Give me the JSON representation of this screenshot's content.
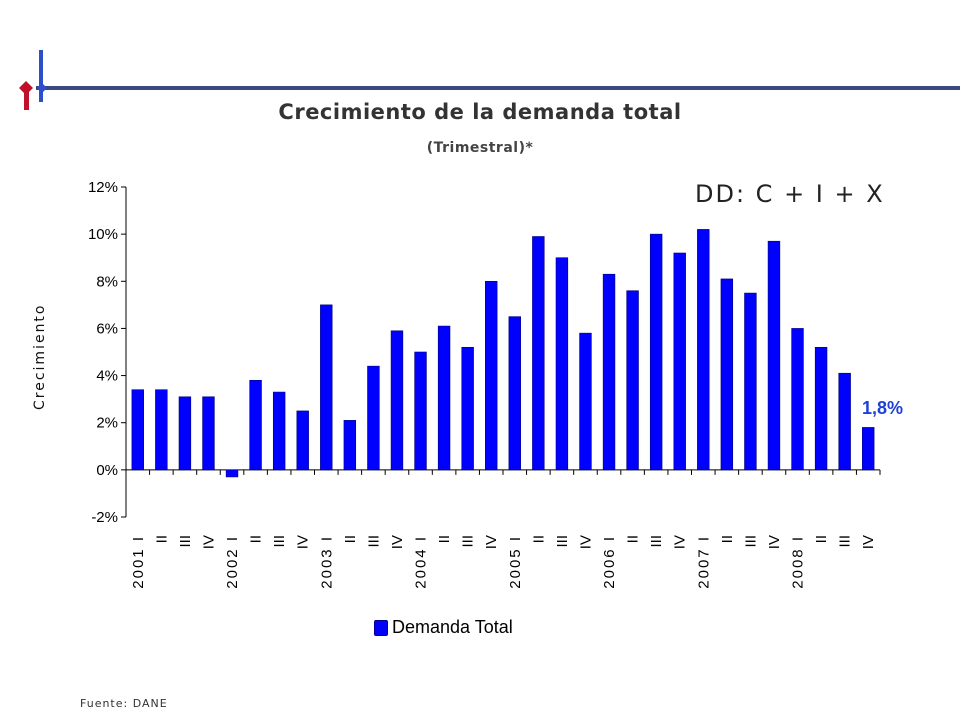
{
  "header": {
    "title": "Crecimiento de la demanda total",
    "subtitle": "(Trimestral)*"
  },
  "annotation": "DD: C + I + X",
  "callout": "1,8%",
  "source": "Fuente: DANE",
  "colors": {
    "bar": "#0000ff",
    "bar_edge": "#000080",
    "rule": "#3b4a7e",
    "logo_red": "#c0102a",
    "logo_blue": "#2a4fc9"
  },
  "chart_data": {
    "type": "bar",
    "ylabel": "Crecimiento",
    "ylim": [
      -2,
      12
    ],
    "yticks": [
      "-2%",
      "0%",
      "2%",
      "4%",
      "6%",
      "8%",
      "10%",
      "12%"
    ],
    "categories": [
      "2001 I",
      "II",
      "III",
      "IV",
      "2002 I",
      "II",
      "III",
      "IV",
      "2003 I",
      "II",
      "III",
      "IV",
      "2004 I",
      "II",
      "III",
      "IV",
      "2005 I",
      "II",
      "III",
      "IV",
      "2006 I",
      "II",
      "III",
      "IV",
      "2007 I",
      "II",
      "III",
      "IV",
      "2008 I",
      "II",
      "III",
      "IV"
    ],
    "series": [
      {
        "name": "Demanda Total",
        "values": [
          3.4,
          3.4,
          3.1,
          3.1,
          -0.3,
          3.8,
          3.3,
          2.5,
          7.0,
          2.1,
          4.4,
          5.9,
          5.0,
          6.1,
          5.2,
          8.0,
          6.5,
          9.9,
          9.0,
          5.8,
          8.3,
          7.6,
          10.0,
          9.2,
          10.2,
          8.1,
          7.5,
          9.7,
          6.0,
          5.2,
          4.1,
          1.8
        ]
      }
    ],
    "legend": "bottom"
  }
}
